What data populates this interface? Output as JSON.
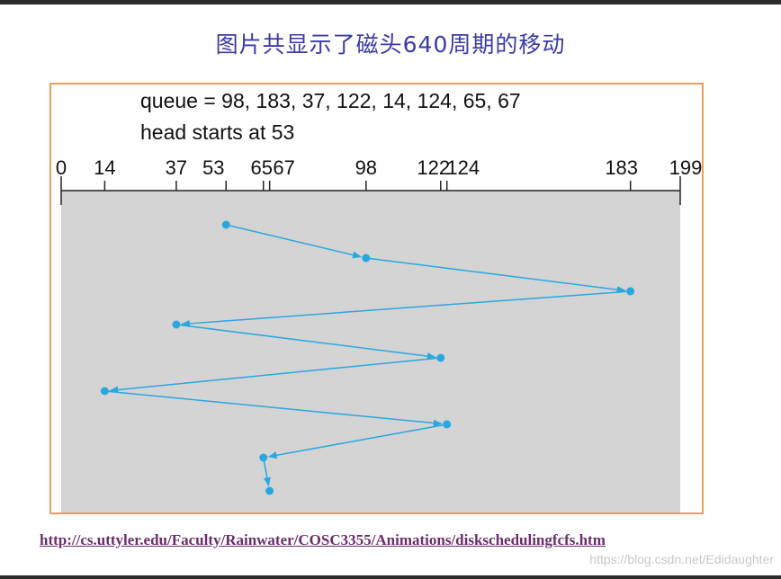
{
  "slide": {
    "title": "图片共显示了磁头640周期的移动",
    "source_link": "http://cs.uttyler.edu/Faculty/Rainwater/COSC3355/Animations/diskschedulingfcfs.htm",
    "watermark": "https://blog.csdn.net/Edidaughter"
  },
  "diagram": {
    "queue_text": "queue = 98, 183, 37, 122, 14, 124, 65, 67",
    "head_text": "head starts at 53",
    "axis_min": 0,
    "axis_max": 199,
    "ticks": [
      0,
      14,
      37,
      53,
      65,
      67,
      98,
      122,
      124,
      183,
      199
    ],
    "tick_labels": [
      "0",
      "14",
      "37",
      "53",
      "65",
      "67",
      "98",
      "122",
      "124",
      "183",
      "199"
    ],
    "path": [
      53,
      98,
      183,
      37,
      122,
      14,
      124,
      65,
      67
    ],
    "colors": {
      "path": "#29a8e0",
      "panel": "#d4d4d4",
      "frame": "#e8a058",
      "axis": "#222222"
    }
  }
}
